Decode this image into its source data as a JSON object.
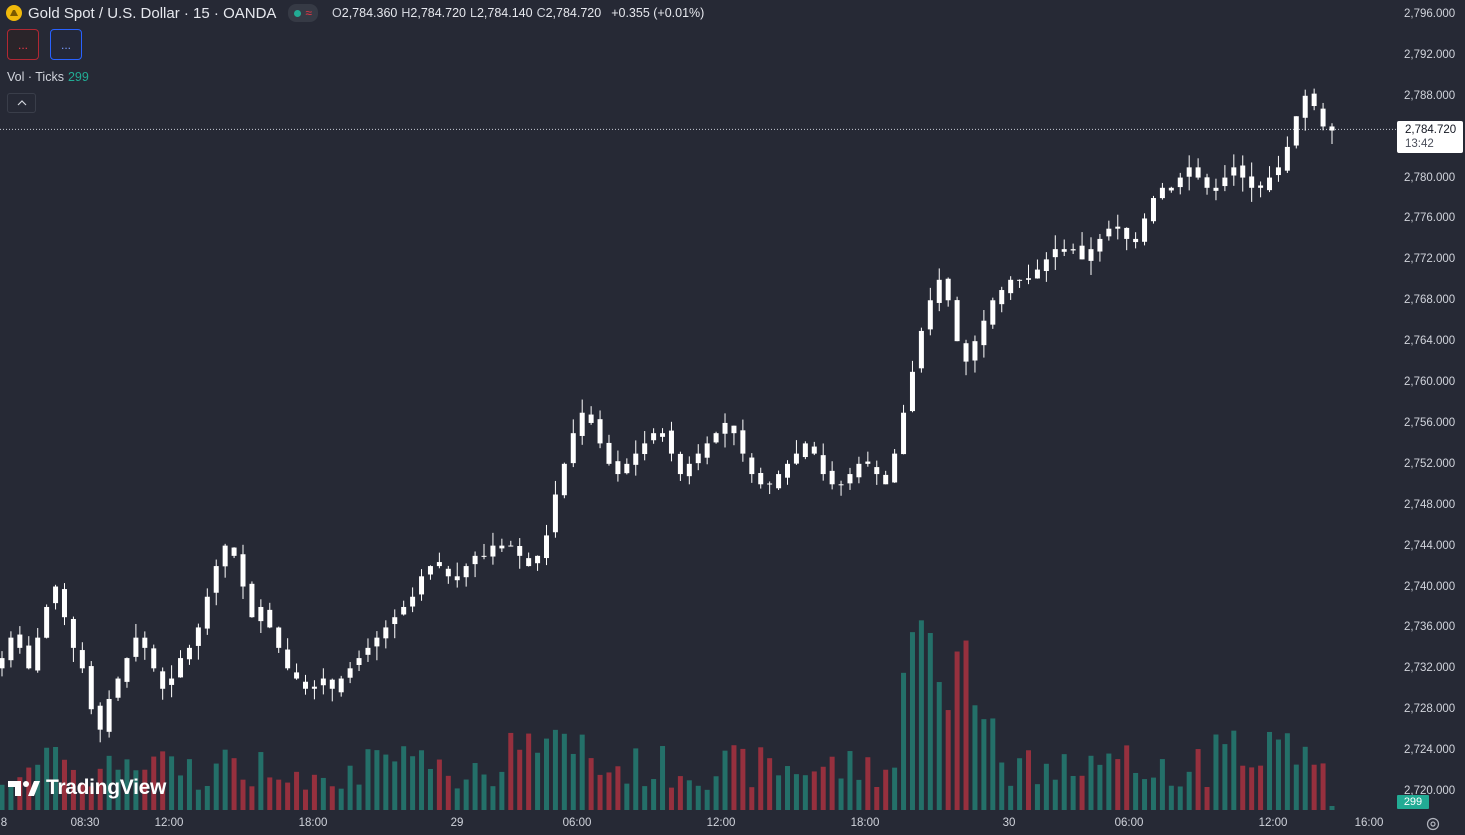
{
  "header": {
    "symbol_title": "Gold Spot / U.S. Dollar · 15 · OANDA",
    "status_icon": "market-open-dot",
    "approx_glyph": "≈",
    "ohlc": {
      "o_key": "O",
      "o": "2,784.360",
      "h_key": "H",
      "h": "2,784.720",
      "l_key": "L",
      "l": "2,784.140",
      "c_key": "C",
      "c": "2,784.720"
    },
    "change": "+0.355 (+0.01%)"
  },
  "indicator_buttons": {
    "red_label": "...",
    "blue_label": "..."
  },
  "volume_legend": {
    "label": "Vol · Ticks",
    "value": "299"
  },
  "price_axis": {
    "ticks": [
      "2,796.000",
      "2,792.000",
      "2,788.000",
      "2,784.000",
      "2,780.000",
      "2,776.000",
      "2,772.000",
      "2,768.000",
      "2,764.000",
      "2,760.000",
      "2,756.000",
      "2,752.000",
      "2,748.000",
      "2,744.000",
      "2,740.000",
      "2,736.000",
      "2,732.000",
      "2,728.000",
      "2,724.000",
      "2,720.000"
    ],
    "tick_values": [
      2796,
      2792,
      2788,
      2784,
      2780,
      2776,
      2772,
      2768,
      2764,
      2760,
      2756,
      2752,
      2748,
      2744,
      2740,
      2736,
      2732,
      2728,
      2724,
      2720
    ],
    "last_price": "2,784.720",
    "last_price_value": 2784.72,
    "countdown": "13:42",
    "volume_badge": "299"
  },
  "time_axis": {
    "ticks": [
      "8",
      "08:30",
      "12:00",
      "18:00",
      "29",
      "06:00",
      "12:00",
      "18:00",
      "30",
      "06:00",
      "12:00",
      "16:00"
    ]
  },
  "watermark": {
    "brand": "TradingView"
  },
  "colors": {
    "background": "#262935",
    "candle": "#ffffff",
    "volume_up": "#22ab94",
    "volume_down": "#f23645",
    "price_label_bg": "#ffffff",
    "accent_blue": "#2962ff"
  },
  "chart_data": {
    "type": "candlestick",
    "symbol": "Gold Spot / U.S. Dollar",
    "interval": "15",
    "ylim": [
      2718.5,
      2797
    ],
    "closes": [
      2733,
      2735,
      2734,
      2732,
      2735,
      2738,
      2740,
      2737,
      2734,
      2732,
      2728,
      2726,
      2729,
      2731,
      2733,
      2735,
      2734,
      2732,
      2730,
      2731,
      2733,
      2734,
      2736,
      2739,
      2742,
      2744,
      2743,
      2740,
      2737,
      2738,
      2736,
      2734,
      2732,
      2731,
      2730,
      2730,
      2731,
      2730,
      2731,
      2732,
      2733,
      2734,
      2735,
      2736,
      2737,
      2738,
      2739,
      2741,
      2742,
      2742,
      2741,
      2741,
      2742,
      2743,
      2743,
      2744,
      2744,
      2744,
      2743,
      2742,
      2743,
      2745,
      2749,
      2752,
      2755,
      2757,
      2756,
      2754,
      2752,
      2751,
      2752,
      2753,
      2754,
      2755,
      2755,
      2753,
      2751,
      2752,
      2753,
      2754,
      2755,
      2756,
      2755,
      2753,
      2751,
      2750,
      2750,
      2751,
      2752,
      2753,
      2754,
      2753,
      2751,
      2750,
      2750,
      2751,
      2752,
      2752,
      2751,
      2750,
      2753,
      2757,
      2761,
      2765,
      2768,
      2770,
      2768,
      2764,
      2762,
      2764,
      2766,
      2768,
      2769,
      2770,
      2770,
      2770,
      2771,
      2772,
      2773,
      2773,
      2773,
      2772,
      2773,
      2774,
      2775,
      2775,
      2774,
      2774,
      2776,
      2778,
      2779,
      2779,
      2780,
      2781,
      2780,
      2779,
      2779,
      2780,
      2781,
      2780,
      2779,
      2779,
      2780,
      2781,
      2783,
      2786,
      2788,
      2787,
      2785,
      2785
    ],
    "volume_note": "Volume pane with 299 ticks on last bar"
  }
}
